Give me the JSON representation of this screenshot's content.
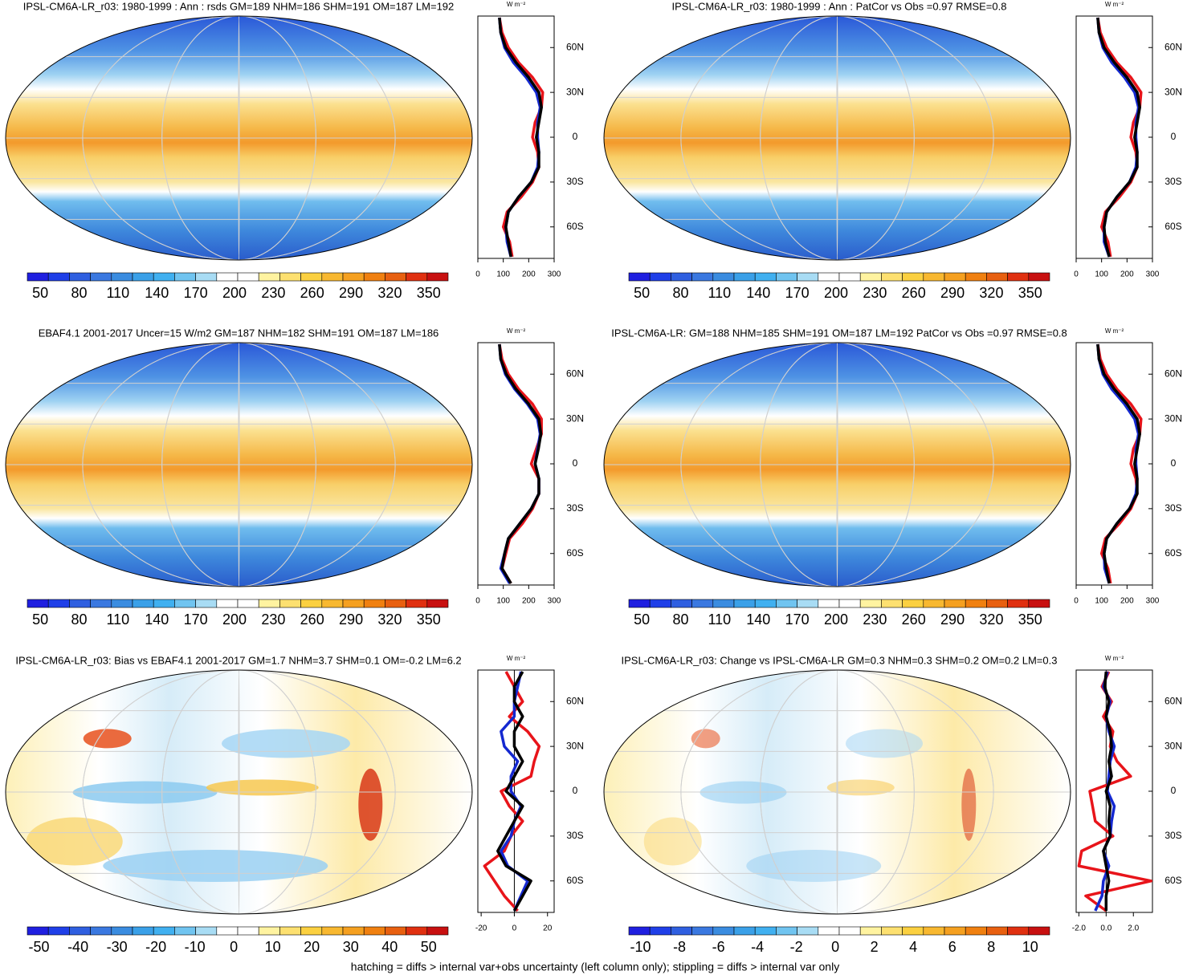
{
  "footnote": "hatching = diffs > internal var+obs uncertainty (left column only); stippling = diffs > internal var only",
  "chart_data": [
    {
      "type": "line",
      "title": "IPSL-CM6A-LR_r03: 1980-1999 : Ann : rsds GM=189 NHM=186 SHM=191 OM=187 LM=192",
      "unit": "W m⁻²",
      "colorbar": {
        "colors": [
          "#1f1fe0",
          "#1f3fe8",
          "#2f5fe0",
          "#3a78e0",
          "#3a8ce0",
          "#3aa0e8",
          "#40b0f0",
          "#70c4f0",
          "#a8dcf4",
          "#ffffff",
          "#ffffff",
          "#fff3a0",
          "#fde070",
          "#fbd040",
          "#f8b830",
          "#f5a020",
          "#f08010",
          "#e86010",
          "#e03010",
          "#c81010"
        ],
        "lim": [
          40,
          365
        ],
        "ticks": [
          50,
          80,
          110,
          140,
          170,
          200,
          230,
          260,
          290,
          320,
          350
        ]
      },
      "xlim": [
        0,
        300
      ],
      "xticks": [
        0,
        100,
        200,
        300
      ],
      "ylim": [
        -80,
        80
      ],
      "yticks": [
        {
          "value": -60,
          "label": "60S"
        },
        {
          "value": -30,
          "label": "30S"
        },
        0,
        {
          "value": 30,
          "label": "30N"
        },
        {
          "value": 60,
          "label": "60N"
        }
      ],
      "y": [
        -80,
        -70,
        -60,
        -50,
        -40,
        -30,
        -20,
        -10,
        0,
        10,
        20,
        30,
        40,
        50,
        60,
        70,
        80
      ],
      "series": [
        {
          "color": "#e8141a",
          "values": [
            135,
            125,
            100,
            115,
            170,
            215,
            240,
            235,
            215,
            225,
            250,
            255,
            215,
            160,
            120,
            95,
            85
          ]
        },
        {
          "color": "#1428d0",
          "values": [
            130,
            115,
            110,
            120,
            160,
            210,
            235,
            240,
            235,
            235,
            245,
            230,
            190,
            140,
            105,
            90,
            85
          ]
        },
        {
          "color": "#000000",
          "values": [
            130,
            120,
            110,
            120,
            160,
            210,
            240,
            240,
            230,
            240,
            250,
            240,
            200,
            150,
            110,
            90,
            85
          ]
        }
      ]
    },
    {
      "type": "line",
      "title": "IPSL-CM6A-LR_r03: 1980-1999 : Ann : PatCor vs Obs =0.97 RMSE=0.8",
      "unit": "W m⁻²",
      "colorbar": {
        "colors": [
          "#1f1fe0",
          "#1f3fe8",
          "#2f5fe0",
          "#3a78e0",
          "#3a8ce0",
          "#3aa0e8",
          "#40b0f0",
          "#70c4f0",
          "#a8dcf4",
          "#ffffff",
          "#ffffff",
          "#fff3a0",
          "#fde070",
          "#fbd040",
          "#f8b830",
          "#f5a020",
          "#f08010",
          "#e86010",
          "#e03010",
          "#c81010"
        ],
        "lim": [
          40,
          365
        ],
        "ticks": [
          50,
          80,
          110,
          140,
          170,
          200,
          230,
          260,
          290,
          320,
          350
        ]
      },
      "xlim": [
        0,
        300
      ],
      "xticks": [
        0,
        100,
        200,
        300
      ],
      "ylim": [
        -80,
        80
      ],
      "yticks": [
        {
          "value": -60,
          "label": "60S"
        },
        {
          "value": -30,
          "label": "30S"
        },
        0,
        {
          "value": 30,
          "label": "30N"
        },
        {
          "value": 60,
          "label": "60N"
        }
      ],
      "y": [
        -80,
        -70,
        -60,
        -50,
        -40,
        -30,
        -20,
        -10,
        0,
        10,
        20,
        30,
        40,
        50,
        60,
        70,
        80
      ],
      "series": [
        {
          "color": "#e8141a",
          "values": [
            135,
            125,
            100,
            115,
            170,
            215,
            240,
            235,
            215,
            225,
            250,
            255,
            215,
            160,
            120,
            95,
            85
          ]
        },
        {
          "color": "#1428d0",
          "values": [
            130,
            110,
            110,
            120,
            160,
            210,
            235,
            240,
            235,
            235,
            245,
            230,
            190,
            140,
            105,
            90,
            85
          ]
        },
        {
          "color": "#000000",
          "values": [
            130,
            115,
            110,
            120,
            160,
            210,
            240,
            240,
            230,
            240,
            250,
            240,
            200,
            150,
            110,
            90,
            85
          ]
        }
      ]
    },
    {
      "type": "line",
      "title": "EBAF4.1 2001-2017 Uncer=15 W/m2 GM=187 NHM=182 SHM=191 OM=187 LM=186",
      "unit": "W m⁻²",
      "colorbar": {
        "colors": [
          "#1f1fe0",
          "#1f3fe8",
          "#2f5fe0",
          "#3a78e0",
          "#3a8ce0",
          "#3aa0e8",
          "#40b0f0",
          "#70c4f0",
          "#a8dcf4",
          "#ffffff",
          "#ffffff",
          "#fff3a0",
          "#fde070",
          "#fbd040",
          "#f8b830",
          "#f5a020",
          "#f08010",
          "#e86010",
          "#e03010",
          "#c81010"
        ],
        "lim": [
          40,
          365
        ],
        "ticks": [
          50,
          80,
          110,
          140,
          170,
          200,
          230,
          260,
          290,
          320,
          350
        ]
      },
      "xlim": [
        0,
        300
      ],
      "xticks": [
        0,
        100,
        200,
        300
      ],
      "ylim": [
        -80,
        80
      ],
      "yticks": [
        {
          "value": -60,
          "label": "60S"
        },
        {
          "value": -30,
          "label": "30S"
        },
        0,
        {
          "value": 30,
          "label": "30N"
        },
        {
          "value": 60,
          "label": "60N"
        }
      ],
      "y": [
        -80,
        -70,
        -60,
        -50,
        -40,
        -30,
        -20,
        -10,
        0,
        10,
        20,
        30,
        40,
        50,
        60,
        70,
        80
      ],
      "series": [
        {
          "color": "#e8141a",
          "values": [
            130,
            95,
            110,
            125,
            175,
            215,
            240,
            240,
            210,
            230,
            250,
            250,
            215,
            160,
            120,
            95,
            85
          ]
        },
        {
          "color": "#1428d0",
          "values": [
            125,
            90,
            105,
            120,
            165,
            210,
            240,
            240,
            225,
            235,
            245,
            235,
            195,
            145,
            108,
            90,
            85
          ]
        },
        {
          "color": "#000000",
          "values": [
            130,
            95,
            105,
            120,
            165,
            210,
            240,
            240,
            225,
            238,
            248,
            240,
            200,
            150,
            112,
            90,
            85
          ]
        }
      ]
    },
    {
      "type": "line",
      "title": "IPSL-CM6A-LR: GM=188 NHM=185 SHM=191 OM=187 LM=192 PatCor vs Obs =0.97 RMSE=0.8",
      "unit": "W m⁻²",
      "colorbar": {
        "colors": [
          "#1f1fe0",
          "#1f3fe8",
          "#2f5fe0",
          "#3a78e0",
          "#3a8ce0",
          "#3aa0e8",
          "#40b0f0",
          "#70c4f0",
          "#a8dcf4",
          "#ffffff",
          "#ffffff",
          "#fff3a0",
          "#fde070",
          "#fbd040",
          "#f8b830",
          "#f5a020",
          "#f08010",
          "#e86010",
          "#e03010",
          "#c81010"
        ],
        "lim": [
          40,
          365
        ],
        "ticks": [
          50,
          80,
          110,
          140,
          170,
          200,
          230,
          260,
          290,
          320,
          350
        ]
      },
      "xlim": [
        0,
        300
      ],
      "xticks": [
        0,
        100,
        200,
        300
      ],
      "ylim": [
        -80,
        80
      ],
      "yticks": [
        {
          "value": -60,
          "label": "60S"
        },
        {
          "value": -30,
          "label": "30S"
        },
        0,
        {
          "value": 30,
          "label": "30N"
        },
        {
          "value": 60,
          "label": "60N"
        }
      ],
      "y": [
        -80,
        -70,
        -60,
        -50,
        -40,
        -30,
        -20,
        -10,
        0,
        10,
        20,
        30,
        40,
        50,
        60,
        70,
        80
      ],
      "series": [
        {
          "color": "#e8141a",
          "values": [
            135,
            125,
            100,
            115,
            170,
            215,
            240,
            235,
            215,
            225,
            250,
            255,
            215,
            160,
            120,
            95,
            85
          ]
        },
        {
          "color": "#1428d0",
          "values": [
            130,
            112,
            110,
            120,
            160,
            210,
            235,
            240,
            235,
            235,
            245,
            230,
            190,
            140,
            105,
            90,
            85
          ]
        },
        {
          "color": "#000000",
          "values": [
            130,
            118,
            110,
            120,
            160,
            210,
            240,
            240,
            230,
            240,
            250,
            240,
            200,
            150,
            110,
            90,
            85
          ]
        }
      ]
    },
    {
      "type": "line",
      "title": "IPSL-CM6A-LR_r03: Bias vs EBAF4.1 2001-2017 GM=1.7 NHM=3.7 SHM=0.1 OM=-0.2 LM=6.2",
      "unit": "W m⁻²",
      "colorbar": {
        "colors": [
          "#1f1fe0",
          "#1f3fe8",
          "#2f5fe0",
          "#3a78e0",
          "#3a8ce0",
          "#3aa0e8",
          "#40b0f0",
          "#70c4f0",
          "#a8dcf4",
          "#ffffff",
          "#ffffff",
          "#fff3a0",
          "#fde070",
          "#fbd040",
          "#f8b830",
          "#f5a020",
          "#f08010",
          "#e86010",
          "#e03010",
          "#c81010"
        ],
        "lim": [
          -53,
          55
        ],
        "ticks": [
          -50,
          -40,
          -30,
          -20,
          -10,
          0,
          10,
          20,
          30,
          40,
          50
        ]
      },
      "xlim": [
        -22,
        24
      ],
      "xticks": [
        -20,
        0,
        20
      ],
      "ylim": [
        -80,
        80
      ],
      "yticks": [
        {
          "value": -60,
          "label": "60S"
        },
        {
          "value": -30,
          "label": "30S"
        },
        0,
        {
          "value": 30,
          "label": "30N"
        },
        {
          "value": 60,
          "label": "60N"
        }
      ],
      "y": [
        -80,
        -70,
        -60,
        -50,
        -40,
        -30,
        -20,
        -10,
        0,
        10,
        20,
        30,
        40,
        50,
        60,
        70,
        80
      ],
      "series": [
        {
          "color": "#e8141a",
          "values": [
            2,
            -6,
            -12,
            -18,
            -6,
            -2,
            5,
            -3,
            -8,
            10,
            12,
            15,
            8,
            -3,
            5,
            0,
            -5
          ]
        },
        {
          "color": "#1428d0",
          "values": [
            0,
            4,
            8,
            -4,
            -8,
            -2,
            0,
            4,
            -2,
            -2,
            2,
            -6,
            -8,
            0,
            0,
            2,
            4
          ]
        },
        {
          "color": "#000000",
          "values": [
            0,
            5,
            10,
            -5,
            -10,
            -5,
            0,
            5,
            -5,
            0,
            5,
            0,
            0,
            5,
            0,
            0,
            5
          ]
        }
      ]
    },
    {
      "type": "line",
      "title": "IPSL-CM6A-LR_r03: Change vs IPSL-CM6A-LR GM=0.3 NHM=0.3 SHM=0.2 OM=0.2 LM=0.3",
      "unit": "W m⁻²",
      "colorbar": {
        "colors": [
          "#1f1fe0",
          "#1f3fe8",
          "#2f5fe0",
          "#3a78e0",
          "#3a8ce0",
          "#3aa0e8",
          "#40b0f0",
          "#70c4f0",
          "#a8dcf4",
          "#ffffff",
          "#ffffff",
          "#fff3a0",
          "#fde070",
          "#fbd040",
          "#f8b830",
          "#f5a020",
          "#f08010",
          "#e86010",
          "#e03010",
          "#c81010"
        ],
        "lim": [
          -10.6,
          11
        ],
        "ticks": [
          -10,
          -8,
          -6,
          -4,
          -2,
          0,
          2,
          4,
          6,
          8,
          10
        ]
      },
      "xlim": [
        -2.2,
        3.4
      ],
      "xticks": [
        {
          "value": -2,
          "label": "-2.0"
        },
        {
          "value": 0,
          "label": "0.0"
        },
        {
          "value": 2,
          "label": "2.0"
        }
      ],
      "ylim": [
        -80,
        80
      ],
      "yticks": [
        {
          "value": -60,
          "label": "60S"
        },
        {
          "value": -30,
          "label": "30S"
        },
        0,
        {
          "value": 30,
          "label": "30N"
        },
        {
          "value": 60,
          "label": "60N"
        }
      ],
      "y": [
        -80,
        -70,
        -60,
        -50,
        -40,
        -30,
        -20,
        -10,
        0,
        10,
        20,
        30,
        40,
        50,
        60,
        70,
        80
      ],
      "series": [
        {
          "color": "#e8141a",
          "values": [
            0,
            -1.5,
            3.3,
            -2,
            -1.8,
            0.5,
            -0.8,
            -1,
            -1.2,
            1.8,
            0.8,
            0.3,
            0.5,
            -0.2,
            0.4,
            -0.3,
            0.2
          ]
        },
        {
          "color": "#1428d0",
          "values": [
            -0.8,
            -0.3,
            -0.2,
            0.2,
            -0.2,
            0.3,
            0.4,
            0.6,
            0.1,
            0.2,
            0.3,
            0.6,
            0.2,
            0,
            0.3,
            -0.2,
            0.1
          ]
        },
        {
          "color": "#000000",
          "values": [
            0,
            0,
            0.2,
            0,
            -0.2,
            0.3,
            0.2,
            0.3,
            0,
            0.4,
            0.2,
            0.4,
            0.3,
            0,
            0.2,
            -0.1,
            0
          ]
        }
      ]
    }
  ]
}
